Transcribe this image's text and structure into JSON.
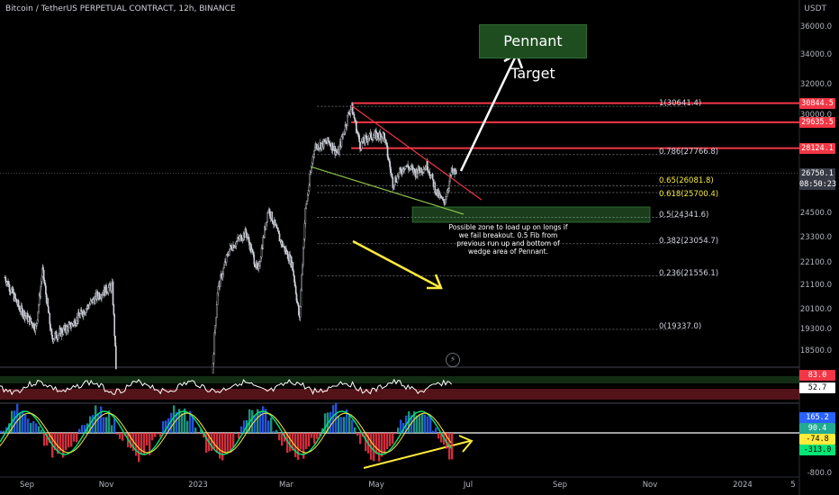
{
  "header": {
    "title": "Bitcoin / TetherUS PERPETUAL CONTRACT, 12h, BINANCE",
    "currency": "USDT"
  },
  "annotations": {
    "target": "Pennant Target",
    "note": "Possible zone to load up on longs if we fail breakout. 0.5 Fib from previous run up and bottom of wedge area of Pennant."
  },
  "price_labels": [
    {
      "value": "30844.5",
      "color": "#f23645"
    },
    {
      "value": "29635.5",
      "color": "#f23645"
    },
    {
      "value": "28124.1",
      "color": "#f23645"
    },
    {
      "value": "26750.1",
      "color": "#363a45"
    },
    {
      "value": "08:50:23",
      "color": "#363a45"
    }
  ],
  "indicator_labels": [
    {
      "value": "83.0",
      "color": "#f23645"
    },
    {
      "value": "52.7",
      "color": "#ffffff"
    },
    {
      "value": "165.2",
      "color": "#2962ff"
    },
    {
      "value": "90.4",
      "color": "#22ab94"
    },
    {
      "value": "-74.8",
      "color": "#ffeb3b"
    },
    {
      "value": "-313.0",
      "color": "#00e676"
    }
  ],
  "chart_data": {
    "type": "line",
    "title": "Bitcoin / TetherUS PERPETUAL CONTRACT, 12h, BINANCE",
    "y_unit": "USDT",
    "ylim": [
      17500,
      37000
    ],
    "y_ticks": [
      36000,
      34000,
      32000,
      30000,
      28000,
      26000,
      24500,
      23300,
      22100,
      21100,
      20100,
      19300,
      18500
    ],
    "y_tick_labels": [
      "36000.0",
      "34000.0",
      "32000.0",
      "30000.0",
      "28000.0",
      "26000.0",
      "24500.0",
      "23300.0",
      "22100.0",
      "21100.0",
      "20100.0",
      "19300.0",
      "18500.0"
    ],
    "x_ticks": [
      "Sep",
      "Nov",
      "2023",
      "Mar",
      "May",
      "Jul",
      "Sep",
      "Nov",
      "2024",
      "5"
    ],
    "x_tick_dates": [
      "2022-09-01",
      "2022-11-01",
      "2023-01-01",
      "2023-03-01",
      "2023-05-01",
      "2023-07-01",
      "2023-09-01",
      "2023-11-01",
      "2024-01-01",
      "2024-02-01"
    ],
    "xlim": [
      "2022-08-15",
      "2024-02-15"
    ],
    "price_path": [
      [
        "2022-08-15",
        21500
      ],
      [
        "2022-08-26",
        20200
      ],
      [
        "2022-09-08",
        19400
      ],
      [
        "2022-09-13",
        21800
      ],
      [
        "2022-09-20",
        19000
      ],
      [
        "2022-10-05",
        19500
      ],
      [
        "2022-10-25",
        20700
      ],
      [
        "2022-11-05",
        21100
      ],
      [
        "2022-11-09",
        16000
      ],
      [
        "2022-11-21",
        15700
      ],
      [
        "2022-12-15",
        17400
      ],
      [
        "2022-12-31",
        16600
      ],
      [
        "2023-01-10",
        17200
      ],
      [
        "2023-01-14",
        20900
      ],
      [
        "2023-01-22",
        22800
      ],
      [
        "2023-02-02",
        23600
      ],
      [
        "2023-02-10",
        21700
      ],
      [
        "2023-02-17",
        24800
      ],
      [
        "2023-02-25",
        23200
      ],
      [
        "2023-03-05",
        22100
      ],
      [
        "2023-03-10",
        19700
      ],
      [
        "2023-03-14",
        24700
      ],
      [
        "2023-03-20",
        28200
      ],
      [
        "2023-03-30",
        28500
      ],
      [
        "2023-04-05",
        27800
      ],
      [
        "2023-04-14",
        30700
      ],
      [
        "2023-04-20",
        28300
      ],
      [
        "2023-04-26",
        28800
      ],
      [
        "2023-05-06",
        28900
      ],
      [
        "2023-05-12",
        26200
      ],
      [
        "2023-05-20",
        27200
      ],
      [
        "2023-05-27",
        26800
      ],
      [
        "2023-06-04",
        27200
      ],
      [
        "2023-06-10",
        25700
      ],
      [
        "2023-06-15",
        25100
      ],
      [
        "2023-06-20",
        26800
      ],
      [
        "2023-06-23",
        26750
      ]
    ],
    "fib_levels": [
      {
        "label": "1(30641.4)",
        "value": 30641.4
      },
      {
        "label": "0.786(27766.8)",
        "value": 27766.8
      },
      {
        "label": "0.65(26081.8)",
        "value": 26081.8
      },
      {
        "label": "0.618(25700.4)",
        "value": 25700.4
      },
      {
        "label": "0.5(24341.6)",
        "value": 24341.6
      },
      {
        "label": "0.382(23054.7)",
        "value": 23054.7
      },
      {
        "label": "0.236(21556.1)",
        "value": 21556.1
      },
      {
        "label": "0(19337.0)",
        "value": 19337.0
      }
    ],
    "resistance_lines": [
      30844.5,
      29635.5,
      28124.1
    ],
    "current_price": 26750.1,
    "oscillator_1": {
      "ylim": [
        0,
        100
      ],
      "labels": [
        "83.0",
        "52.7"
      ]
    },
    "oscillator_2": {
      "y_tick_labels": [
        "-800.0"
      ],
      "labels": [
        "165.2",
        "90.4",
        "-74.8",
        "-313.0"
      ]
    }
  }
}
